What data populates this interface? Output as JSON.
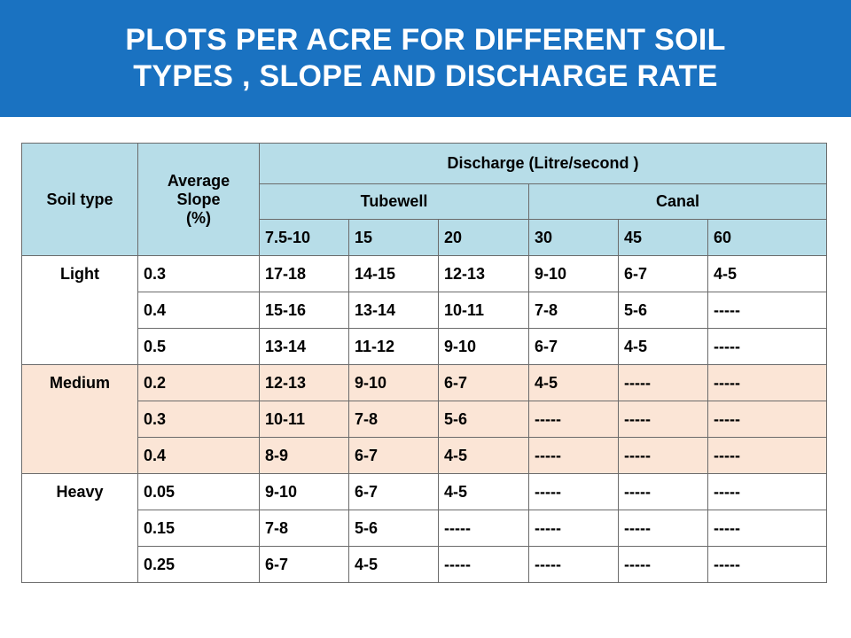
{
  "title_line1": "PLOTS PER ACRE  FOR DIFFERENT SOIL",
  "title_line2": "TYPES , SLOPE AND DISCHARGE RATE",
  "header": {
    "soil_type": "Soil type",
    "avg_slope_l1": "Average",
    "avg_slope_l2": "Slope",
    "avg_slope_l3": "(%)",
    "discharge": "Discharge (Litre/second )",
    "tubewell": "Tubewell",
    "canal": "Canal",
    "rates": [
      "7.5-10",
      "15",
      "20",
      "30",
      "45",
      "60"
    ]
  },
  "groups": [
    {
      "soil": "Light",
      "rows": [
        {
          "slope": "0.3",
          "values": [
            "17-18",
            "14-15",
            "12-13",
            "9-10",
            "6-7",
            "4-5"
          ]
        },
        {
          "slope": "0.4",
          "values": [
            "15-16",
            "13-14",
            "10-11",
            "7-8",
            "5-6",
            "-----"
          ]
        },
        {
          "slope": "0.5",
          "values": [
            "13-14",
            "11-12",
            "9-10",
            "6-7",
            "4-5",
            "-----"
          ]
        }
      ]
    },
    {
      "soil": "Medium",
      "rows": [
        {
          "slope": "0.2",
          "values": [
            "12-13",
            "9-10",
            "6-7",
            "4-5",
            "-----",
            "-----"
          ]
        },
        {
          "slope": "0.3",
          "values": [
            "10-11",
            "7-8",
            "5-6",
            "-----",
            "-----",
            "-----"
          ]
        },
        {
          "slope": "0.4",
          "values": [
            "8-9",
            "6-7",
            "4-5",
            "-----",
            "-----",
            "-----"
          ]
        }
      ]
    },
    {
      "soil": "Heavy",
      "rows": [
        {
          "slope": "0.05",
          "values": [
            "9-10",
            "6-7",
            "4-5",
            "-----",
            "-----",
            "-----"
          ]
        },
        {
          "slope": "0.15",
          "values": [
            "7-8",
            "5-6",
            "-----",
            "-----",
            "-----",
            "-----"
          ]
        },
        {
          "slope": "0.25",
          "values": [
            "6-7",
            "4-5",
            "-----",
            "-----",
            "-----",
            "-----"
          ]
        }
      ]
    }
  ]
}
